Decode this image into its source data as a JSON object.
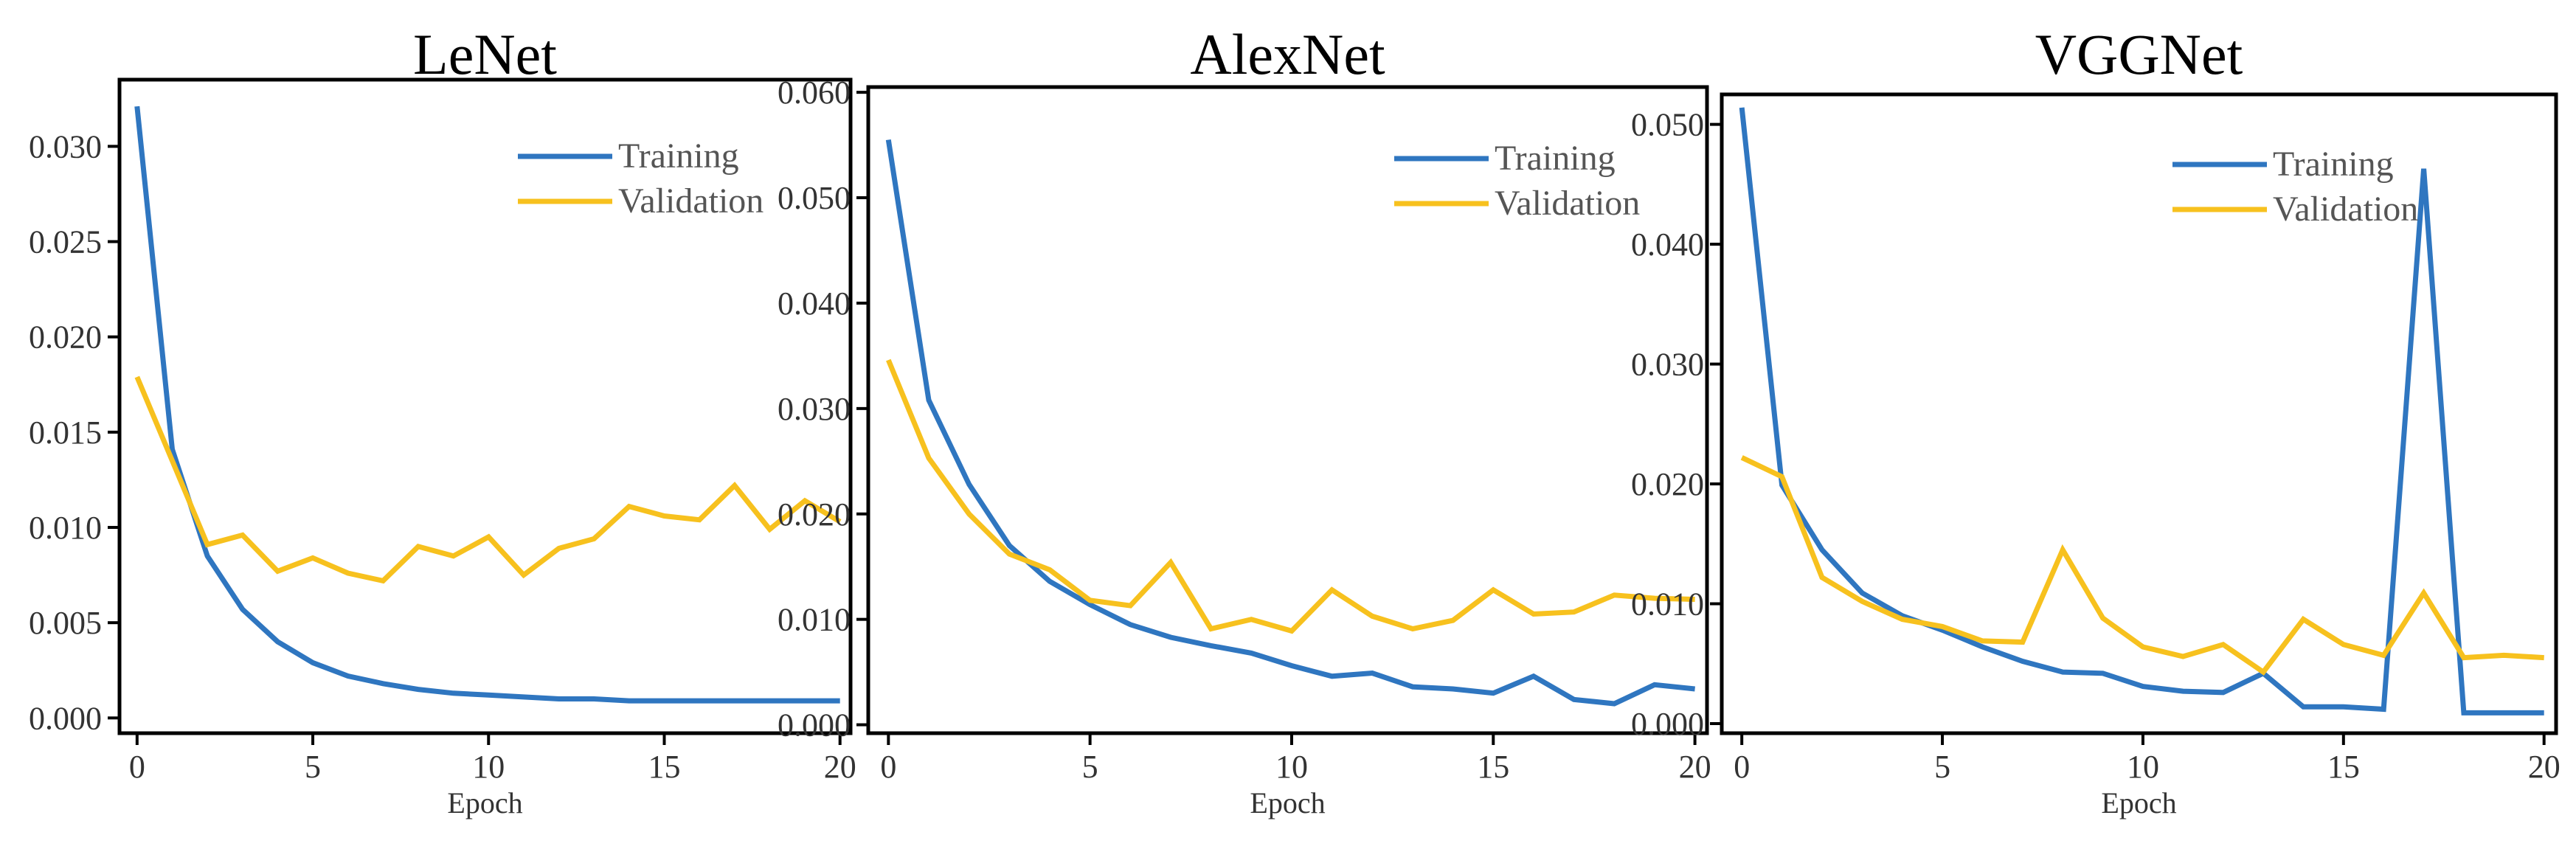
{
  "chart_data": [
    {
      "type": "line",
      "title": "LeNet",
      "xlabel": "Epoch",
      "ylabel": "",
      "xlim": [
        -0.5,
        20.3
      ],
      "ylim": [
        -0.0008,
        0.0335
      ],
      "xticks": [
        0,
        5,
        10,
        15,
        20
      ],
      "xtick_labels": [
        "0",
        "5",
        "10",
        "15",
        "20"
      ],
      "yticks": [
        0,
        0.005,
        0.01,
        0.015,
        0.02,
        0.025,
        0.03
      ],
      "ytick_labels": [
        "0.000",
        "0.005",
        "0.010",
        "0.015",
        "0.020",
        "0.025",
        "0.030"
      ],
      "legend_position": "top-right",
      "x": [
        0,
        1,
        2,
        3,
        4,
        5,
        6,
        7,
        8,
        9,
        10,
        11,
        12,
        13,
        14,
        15,
        16,
        17,
        18,
        19,
        20
      ],
      "series": [
        {
          "name": "Training",
          "color": "#2f76c0",
          "values": [
            0.0321,
            0.0141,
            0.0085,
            0.0057,
            0.004,
            0.0029,
            0.0022,
            0.0018,
            0.0015,
            0.0013,
            0.0012,
            0.0011,
            0.001,
            0.001,
            0.0009,
            0.0009,
            0.0009,
            0.0009,
            0.0009,
            0.0009,
            0.0009
          ]
        },
        {
          "name": "Validation",
          "color": "#f7c11e",
          "values": [
            0.0179,
            0.0135,
            0.0091,
            0.0096,
            0.0077,
            0.0084,
            0.0076,
            0.0072,
            0.009,
            0.0085,
            0.0095,
            0.0075,
            0.0089,
            0.0094,
            0.0111,
            0.0106,
            0.0104,
            0.0122,
            0.0099,
            0.0114,
            0.0103
          ]
        }
      ]
    },
    {
      "type": "line",
      "title": "AlexNet",
      "xlabel": "Epoch",
      "ylabel": "",
      "xlim": [
        -0.5,
        20.3
      ],
      "ylim": [
        -0.0008,
        0.0605
      ],
      "xticks": [
        0,
        5,
        10,
        15,
        20
      ],
      "xtick_labels": [
        "0",
        "5",
        "10",
        "15",
        "20"
      ],
      "yticks": [
        0,
        0.01,
        0.02,
        0.03,
        0.04,
        0.05,
        0.06
      ],
      "ytick_labels": [
        "0.000",
        "0.010",
        "0.020",
        "0.030",
        "0.040",
        "0.050",
        "0.060"
      ],
      "legend_position": "top-right",
      "x": [
        0,
        1,
        2,
        3,
        4,
        5,
        6,
        7,
        8,
        9,
        10,
        11,
        12,
        13,
        14,
        15,
        16,
        17,
        18,
        19,
        20
      ],
      "series": [
        {
          "name": "Training",
          "color": "#2f76c0",
          "values": [
            0.0555,
            0.0308,
            0.0228,
            0.017,
            0.0136,
            0.0114,
            0.0095,
            0.0083,
            0.0075,
            0.0068,
            0.0056,
            0.0046,
            0.0049,
            0.0036,
            0.0034,
            0.003,
            0.0046,
            0.0024,
            0.002,
            0.0038,
            0.0034
          ]
        },
        {
          "name": "Validation",
          "color": "#f7c11e",
          "values": [
            0.0346,
            0.0253,
            0.02,
            0.0162,
            0.0147,
            0.0118,
            0.0113,
            0.0154,
            0.0091,
            0.01,
            0.0089,
            0.0128,
            0.0103,
            0.0091,
            0.0099,
            0.0128,
            0.0105,
            0.0107,
            0.0123,
            0.012,
            0.0119
          ]
        }
      ]
    },
    {
      "type": "line",
      "title": "VGGNet",
      "xlabel": "Epoch",
      "ylabel": "",
      "xlim": [
        -0.5,
        20.3
      ],
      "ylim": [
        -0.0008,
        0.0525
      ],
      "xticks": [
        0,
        5,
        10,
        15,
        20
      ],
      "xtick_labels": [
        "0",
        "5",
        "10",
        "15",
        "20"
      ],
      "yticks": [
        0,
        0.01,
        0.02,
        0.03,
        0.04,
        0.05
      ],
      "ytick_labels": [
        "0.000",
        "0.010",
        "0.020",
        "0.030",
        "0.040",
        "0.050"
      ],
      "legend_position": "top-right",
      "x": [
        0,
        1,
        2,
        3,
        4,
        5,
        6,
        7,
        8,
        9,
        10,
        11,
        12,
        13,
        14,
        15,
        16,
        17,
        18,
        19,
        20
      ],
      "series": [
        {
          "name": "Training",
          "color": "#2f76c0",
          "values": [
            0.0514,
            0.0199,
            0.0145,
            0.0109,
            0.009,
            0.0078,
            0.0064,
            0.0052,
            0.0043,
            0.0042,
            0.0031,
            0.0027,
            0.0026,
            0.0042,
            0.0014,
            0.0014,
            0.0012,
            0.0463,
            0.0009,
            0.0009,
            0.0009
          ]
        },
        {
          "name": "Validation",
          "color": "#f7c11e",
          "values": [
            0.0222,
            0.0206,
            0.0122,
            0.0102,
            0.0087,
            0.0081,
            0.0069,
            0.0068,
            0.0145,
            0.0088,
            0.0064,
            0.0056,
            0.0066,
            0.0043,
            0.0087,
            0.0066,
            0.0057,
            0.0109,
            0.0055,
            0.0057,
            0.0055
          ]
        }
      ]
    }
  ]
}
